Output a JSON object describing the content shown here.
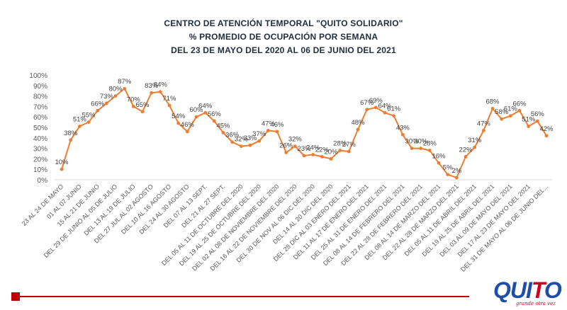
{
  "chart_data": {
    "type": "line",
    "title": [
      "CENTRO DE ATENCIÓN TEMPORAL \"QUITO SOLIDARIO\"",
      "%  PROMEDIO DE OCUPACIÓN POR SEMANA",
      "DEL 23 DE MAYO DEL  2020 AL 06 DE JUNIO DEL 2021"
    ],
    "y_ticks": [
      "0%",
      "10%",
      "20%",
      "30%",
      "40%",
      "50%",
      "60%",
      "70%",
      "80%",
      "90%",
      "100%"
    ],
    "ylim": [
      0,
      100
    ],
    "grid": false,
    "color": "#ED7D31",
    "x_labels": [
      "23 AL 24 DE MAYO",
      "01 AL 07 JUNIO",
      "15 AL 21 DE JUNIO",
      "DEL 29 DE JUNIO AL 05 DE JULIO",
      "DEL 13 AL 19 DE JULIO",
      "DEL 27 JUL AL 02 AGOSTO",
      "DEL 10 AL 16 AGOSTO",
      "DEL 24 AL 30 AGOSTO",
      "DEL 07 AL 13 SEPT.",
      "DEL 21 AL 27 SEPT.",
      "DEL 05 AL 11 DE OCTUBRE DEL 2020",
      "DEL 19 AL 25 DE OCTUBRE DEL 2020",
      "DEL 02 AL 08 DE NOVIEMBRE DEL 2020",
      "DEL 16 AL 22 DE NOVIEMBRE DEL 2020",
      "DEL 30 DE NOV AL 06 DIC DEL 2020",
      "DEL 14 AL 20 DIC DEL 2020",
      "DEL 28 DIC AL 03 ENERO DEL 2021",
      "DEL 11 AL 17 DE ENERO DEL 2021",
      "DEL 25 AL 31 DE ENERO DEL 2021",
      "DEL 08 AL 14 DE FEBRERO DEL 2021",
      "DEL 22 AL 28 DE FEBRERO DEL 2021",
      "DEL 08 AL 14 DE MARZO DEL 2021",
      "DEL 22 AL 28 DE MARZO DEL 2021",
      "DEL 05 AL 11 DE ABRIL DEL 2021",
      "DEL 19 AL 25 DE ABRIL DEL 2021",
      "DEL 03 AL 09 DE MAYO DEL 2021",
      "DEL 17 AL 23 DE MAYO DEL 2021",
      "DEL 31 DE MAYO AL 06 DE JUNIO DEL..."
    ],
    "values": [
      10,
      38,
      51,
      55,
      66,
      73,
      80,
      87,
      70,
      65,
      83,
      84,
      71,
      54,
      46,
      60,
      64,
      56,
      45,
      36,
      32,
      33,
      37,
      47,
      46,
      26,
      32,
      23,
      24,
      22,
      20,
      28,
      27,
      48,
      67,
      69,
      64,
      61,
      43,
      30,
      30,
      28,
      16,
      5,
      2,
      22,
      31,
      47,
      68,
      58,
      61,
      66,
      51,
      56,
      42
    ]
  },
  "logo": {
    "text_main": "QUITO",
    "tagline": "grande otra vez"
  }
}
